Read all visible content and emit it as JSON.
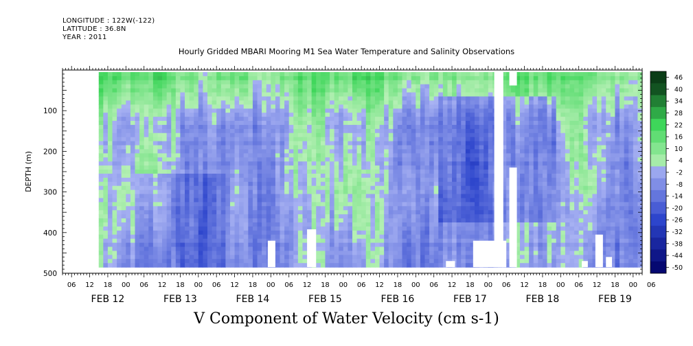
{
  "meta": {
    "longitude": "LONGITUDE : 122W(-122)",
    "latitude": "LATITUDE : 36.8N",
    "year": "YEAR : 2011"
  },
  "chart_data": {
    "type": "heatmap",
    "title": "Hourly Gridded MBARI Mooring M1 Sea Water Temperature and Salinity Observations",
    "bottom_title": "V Component of Water Velocity (cm s-1)",
    "ylabel": "DEPTH (m)",
    "ylim": [
      500,
      0
    ],
    "y_ticks": [
      100,
      200,
      300,
      400,
      500
    ],
    "x_hour_ticks": [
      "06",
      "12",
      "18",
      "00",
      "06",
      "12",
      "18",
      "00",
      "06",
      "12",
      "18",
      "00",
      "06",
      "12",
      "18",
      "00",
      "06",
      "12",
      "18",
      "00",
      "06",
      "12",
      "18",
      "00",
      "06",
      "12",
      "18",
      "00",
      "06",
      "12",
      "18",
      "00",
      "06"
    ],
    "x_day_labels": [
      "FEB 12",
      "FEB 13",
      "FEB 14",
      "FEB 15",
      "FEB 16",
      "FEB 17",
      "FEB 18",
      "FEB 19"
    ],
    "colorbar_levels": [
      -50,
      -44,
      -38,
      -32,
      -26,
      -20,
      -14,
      -8,
      -2,
      4,
      10,
      16,
      22,
      28,
      34,
      40,
      46
    ],
    "colorbar_labels": [
      "46",
      "40",
      "34",
      "28",
      "22",
      "16",
      "10",
      "4",
      "-2",
      "-8",
      "-14",
      "-20",
      "-26",
      "-32",
      "-38",
      "-44",
      "-50"
    ],
    "colors": {
      "negative_max": "#000066",
      "negative_mid": "#2d45cc",
      "negative_light": "#a9b3f3",
      "positive_light": "#b7f0b6",
      "positive_mid": "#3ed65a",
      "positive_max": "#0b3d17"
    }
  }
}
